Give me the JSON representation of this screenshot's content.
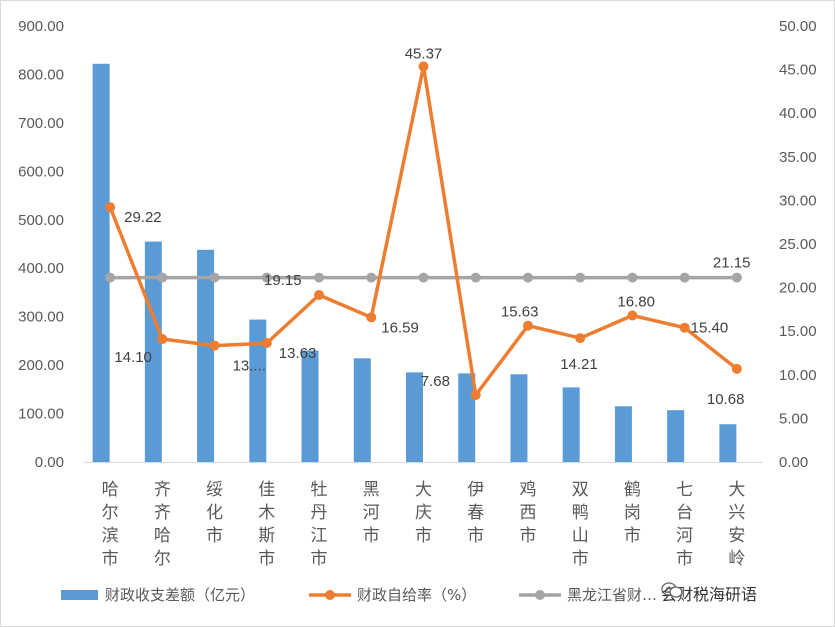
{
  "chart_data": {
    "type": "bar+line",
    "categories": [
      "哈尔滨市",
      "齐齐哈尔",
      "绥化市",
      "佳木斯市",
      "牡丹江市",
      "黑河市",
      "大庆市",
      "伊春市",
      "鸡西市",
      "双鸭山市",
      "鹤岗市",
      "七台河市",
      "大兴安岭"
    ],
    "left_axis": {
      "min": 0,
      "max": 900,
      "step": 100,
      "tick_labels": [
        "0.00",
        "100.00",
        "200.00",
        "300.00",
        "400.00",
        "500.00",
        "600.00",
        "700.00",
        "800.00",
        "900.00"
      ]
    },
    "right_axis": {
      "min": 0,
      "max": 50,
      "step": 5,
      "tick_labels": [
        "0.00",
        "5.00",
        "10.00",
        "15.00",
        "20.00",
        "25.00",
        "30.00",
        "35.00",
        "40.00",
        "45.00",
        "50.00"
      ]
    },
    "series": [
      {
        "name": "财政收支差额（亿元）",
        "type": "bar",
        "axis": "left",
        "color": "#5b9bd5",
        "values": [
          822,
          455,
          438,
          294,
          230,
          214,
          185,
          183,
          181,
          154,
          115,
          107,
          78
        ]
      },
      {
        "name": "财政自给率（%）",
        "type": "line",
        "axis": "right",
        "color": "#ed7d31",
        "values": [
          29.22,
          14.1,
          13.35,
          13.63,
          19.15,
          16.59,
          45.37,
          7.68,
          15.63,
          14.21,
          16.8,
          15.4,
          10.68
        ],
        "data_labels": [
          "29.22",
          "14.10",
          "13....",
          "13.63",
          "19.15",
          "16.59",
          "45.37",
          "7.68",
          "15.63",
          "14.21",
          "16.80",
          "15.40",
          "10.68"
        ]
      },
      {
        "name": "黑龙江省财…",
        "type": "line",
        "axis": "right",
        "color": "#a5a5a5",
        "values": [
          21.15,
          21.15,
          21.15,
          21.15,
          21.15,
          21.15,
          21.15,
          21.15,
          21.15,
          21.15,
          21.15,
          21.15,
          21.15
        ],
        "data_label": "21.15"
      }
    ],
    "legend_position": "bottom",
    "grid": false
  },
  "watermark": {
    "text": "会财税海研语",
    "icon": "wechat-icon"
  }
}
